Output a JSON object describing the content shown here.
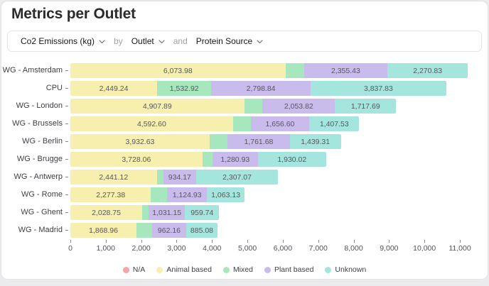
{
  "page": {
    "title": "Metrics per Outlet"
  },
  "controls": {
    "metric_label": "Co2 Emissions (kg)",
    "by_label": "by",
    "dimension1_label": "Outlet",
    "and_label": "and",
    "dimension2_label": "Protein Source",
    "chevron_icon": "chevron-down-icon"
  },
  "chart_data": {
    "type": "bar",
    "orientation": "horizontal",
    "stacked": true,
    "title": "Metrics per Outlet",
    "xlabel": "Co2 Emissions (kg)",
    "ylabel": "Outlet",
    "grid": false,
    "legend_position": "bottom",
    "xlim": [
      0,
      11500
    ],
    "x_ticks": [
      0,
      1000,
      2000,
      3000,
      4000,
      5000,
      6000,
      7000,
      8000,
      9000,
      10000,
      11000
    ],
    "x_tick_labels": [
      "0",
      "1,000",
      "2,000",
      "3,000",
      "4,000",
      "5,000",
      "6,000",
      "7,000",
      "8,000",
      "9,000",
      "10,000",
      "11,000"
    ],
    "legend": [
      "N/A",
      "Animal based",
      "Mixed",
      "Plant based",
      "Unknown"
    ],
    "series_colors": {
      "N/A": "#f1a8a8",
      "Animal based": "#f7efae",
      "Mixed": "#a7e7bd",
      "Plant based": "#c9bbec",
      "Unknown": "#a4e6de"
    },
    "categories": [
      "WG - Amsterdam",
      "CPU",
      "WG - London",
      "WG - Brussels",
      "WG - Berlin",
      "WG - Brugge",
      "WG - Antwerp",
      "WG - Rome",
      "WG - Ghent",
      "WG - Madrid"
    ],
    "rows": [
      {
        "category": "WG - Amsterdam",
        "segments": [
          {
            "series": "Animal based",
            "value": 6073.98,
            "label": "6,073.98"
          },
          {
            "series": "Mixed",
            "value": 525,
            "label": ""
          },
          {
            "series": "Plant based",
            "value": 2355.43,
            "label": "2,355.43"
          },
          {
            "series": "Unknown",
            "value": 2270.83,
            "label": "2,270.83"
          }
        ]
      },
      {
        "category": "CPU",
        "segments": [
          {
            "series": "Animal based",
            "value": 2449.24,
            "label": "2,449.24"
          },
          {
            "series": "Mixed",
            "value": 1532.92,
            "label": "1,532.92"
          },
          {
            "series": "Plant based",
            "value": 2798.84,
            "label": "2,798.84"
          },
          {
            "series": "Unknown",
            "value": 3837.83,
            "label": "3,837.83"
          }
        ]
      },
      {
        "category": "WG - London",
        "segments": [
          {
            "series": "Animal based",
            "value": 4907.89,
            "label": "4,907.89"
          },
          {
            "series": "Mixed",
            "value": 515,
            "label": ""
          },
          {
            "series": "Plant based",
            "value": 2053.82,
            "label": "2,053.82"
          },
          {
            "series": "Unknown",
            "value": 1717.69,
            "label": "1,717.69"
          }
        ]
      },
      {
        "category": "WG - Brussels",
        "segments": [
          {
            "series": "Animal based",
            "value": 4592.6,
            "label": "4,592.60"
          },
          {
            "series": "Mixed",
            "value": 500,
            "label": ""
          },
          {
            "series": "Plant based",
            "value": 1656.6,
            "label": "1,656.60"
          },
          {
            "series": "Unknown",
            "value": 1407.53,
            "label": "1,407.53"
          }
        ]
      },
      {
        "category": "WG - Berlin",
        "segments": [
          {
            "series": "Animal based",
            "value": 3932.63,
            "label": "3,932.63"
          },
          {
            "series": "Mixed",
            "value": 505,
            "label": ""
          },
          {
            "series": "Plant based",
            "value": 1761.68,
            "label": "1,761.68"
          },
          {
            "series": "Unknown",
            "value": 1439.31,
            "label": "1,439.31"
          }
        ]
      },
      {
        "category": "WG - Brugge",
        "segments": [
          {
            "series": "Animal based",
            "value": 3728.06,
            "label": "3,728.06"
          },
          {
            "series": "Mixed",
            "value": 285,
            "label": ""
          },
          {
            "series": "Plant based",
            "value": 1280.93,
            "label": "1,280.93"
          },
          {
            "series": "Unknown",
            "value": 1930.02,
            "label": "1,930.02"
          }
        ]
      },
      {
        "category": "WG - Antwerp",
        "segments": [
          {
            "series": "Animal based",
            "value": 2441.12,
            "label": "2,441.12"
          },
          {
            "series": "Mixed",
            "value": 180,
            "label": ""
          },
          {
            "series": "Plant based",
            "value": 934.17,
            "label": "934.17"
          },
          {
            "series": "Unknown",
            "value": 2307.07,
            "label": "2,307.07"
          }
        ]
      },
      {
        "category": "WG - Rome",
        "segments": [
          {
            "series": "Animal based",
            "value": 2277.38,
            "label": "2,277.38"
          },
          {
            "series": "Mixed",
            "value": 455,
            "label": ""
          },
          {
            "series": "Plant based",
            "value": 1124.93,
            "label": "1,124.93"
          },
          {
            "series": "Unknown",
            "value": 1063.13,
            "label": "1,063.13"
          }
        ]
      },
      {
        "category": "WG - Ghent",
        "segments": [
          {
            "series": "Animal based",
            "value": 2028.75,
            "label": "2,028.75"
          },
          {
            "series": "Mixed",
            "value": 180,
            "label": ""
          },
          {
            "series": "Plant based",
            "value": 1031.15,
            "label": "1,031.15"
          },
          {
            "series": "Unknown",
            "value": 959.74,
            "label": "959.74"
          }
        ]
      },
      {
        "category": "WG - Madrid",
        "segments": [
          {
            "series": "Animal based",
            "value": 1868.96,
            "label": "1,868.96"
          },
          {
            "series": "Mixed",
            "value": 440,
            "label": ""
          },
          {
            "series": "Plant based",
            "value": 962.16,
            "label": "962.16"
          },
          {
            "series": "Unknown",
            "value": 885.08,
            "label": "885.08"
          }
        ]
      }
    ]
  }
}
